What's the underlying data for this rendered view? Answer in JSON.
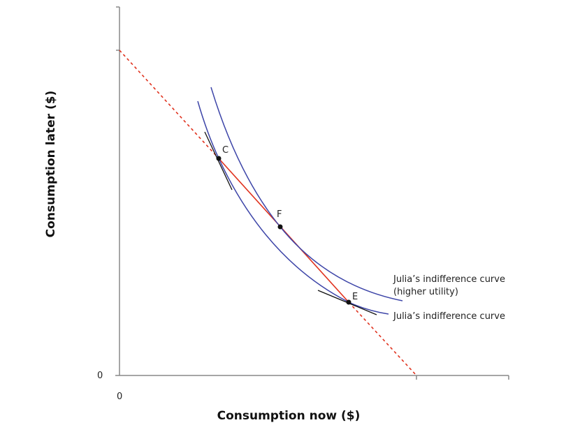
{
  "axes": {
    "x_label": "Consumption now ($)",
    "y_label": "Consumption later ($)",
    "x_origin": "0",
    "y_origin": "0"
  },
  "points": {
    "c": "C",
    "f": "F",
    "e": "E"
  },
  "curves": {
    "higher": {
      "line1": "Julia’s indifference curve",
      "line2": "(higher utility)"
    },
    "lower": "Julia’s indifference curve"
  },
  "colors": {
    "indifference": "#3d45a8",
    "budget": "#e0321e",
    "tangent": "#111111",
    "axis": "#888888"
  }
}
